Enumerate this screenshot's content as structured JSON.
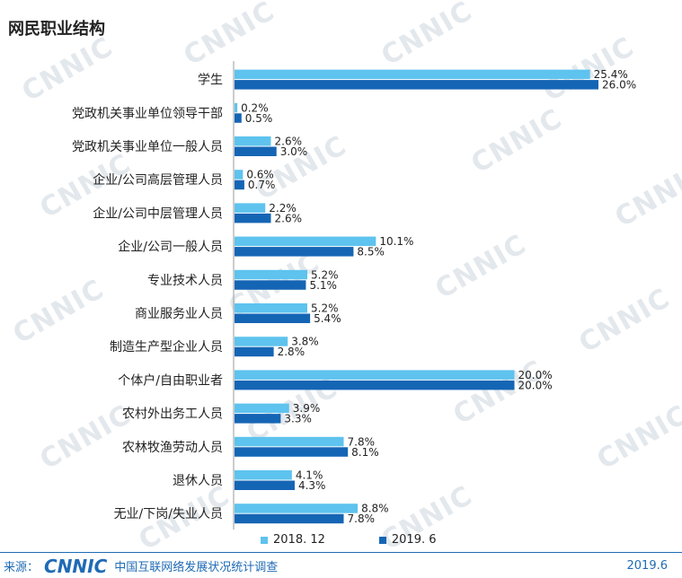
{
  "title": "网民职业结构",
  "watermark_text": "CNNIC",
  "colors": {
    "series1": "#5ec3ee",
    "series2": "#1565b5",
    "footer": "#1f6bb5"
  },
  "legend": {
    "s1": "2018. 12",
    "s2": "2019. 6"
  },
  "footer": {
    "source": "来源：",
    "logo": "CNNIC",
    "survey": "中国互联网络发展状况统计调查",
    "date": "2019.6"
  },
  "chart_data": {
    "type": "bar",
    "orientation": "horizontal",
    "categories": [
      "学生",
      "党政机关事业单位领导干部",
      "党政机关事业单位一般人员",
      "企业/公司高层管理人员",
      "企业/公司中层管理人员",
      "企业/公司一般人员",
      "专业技术人员",
      "商业服务业人员",
      "制造生产型企业人员",
      "个体户/自由职业者",
      "农村外出务工人员",
      "农林牧渔劳动人员",
      "退休人员",
      "无业/下岗/失业人员"
    ],
    "series": [
      {
        "name": "2018. 12",
        "values": [
          25.4,
          0.2,
          2.6,
          0.6,
          2.2,
          10.1,
          5.2,
          5.2,
          3.8,
          20.0,
          3.9,
          7.8,
          4.1,
          8.8
        ]
      },
      {
        "name": "2019. 6",
        "values": [
          26.0,
          0.5,
          3.0,
          0.7,
          2.6,
          8.5,
          5.1,
          5.4,
          2.8,
          20.0,
          3.3,
          8.1,
          4.3,
          7.8
        ]
      }
    ],
    "value_suffix": "%",
    "xlim": [
      0,
      30
    ],
    "legend_position": "bottom"
  }
}
